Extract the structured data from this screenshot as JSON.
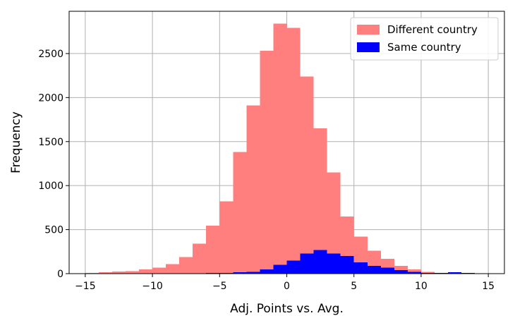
{
  "chart_data": {
    "type": "bar",
    "title": "",
    "xlabel": "Adj. Points vs. Avg.",
    "ylabel": "Frequency",
    "xlim": [
      -16.2,
      16.2
    ],
    "ylim": [
      0,
      2980
    ],
    "xticks": [
      -15,
      -10,
      -5,
      0,
      5,
      10,
      15
    ],
    "yticks": [
      0,
      500,
      1000,
      1500,
      2000,
      2500
    ],
    "grid": true,
    "legend_position": "top-right",
    "bin_width": 1,
    "series": [
      {
        "name": "Different country",
        "color": "#ff7f7f",
        "bins": [
          {
            "x0": -15,
            "value": 10
          },
          {
            "x0": -14,
            "value": 15
          },
          {
            "x0": -13,
            "value": 25
          },
          {
            "x0": -12,
            "value": 30
          },
          {
            "x0": -11,
            "value": 50
          },
          {
            "x0": -10,
            "value": 70
          },
          {
            "x0": -9,
            "value": 110
          },
          {
            "x0": -8,
            "value": 190
          },
          {
            "x0": -7,
            "value": 340
          },
          {
            "x0": -6,
            "value": 545
          },
          {
            "x0": -5,
            "value": 820
          },
          {
            "x0": -4,
            "value": 1380
          },
          {
            "x0": -3,
            "value": 1910
          },
          {
            "x0": -2,
            "value": 2530
          },
          {
            "x0": -1,
            "value": 2840
          },
          {
            "x0": 0,
            "value": 2790
          },
          {
            "x0": 1,
            "value": 2240
          },
          {
            "x0": 2,
            "value": 1650
          },
          {
            "x0": 3,
            "value": 1150
          },
          {
            "x0": 4,
            "value": 650
          },
          {
            "x0": 5,
            "value": 420
          },
          {
            "x0": 6,
            "value": 260
          },
          {
            "x0": 7,
            "value": 170
          },
          {
            "x0": 8,
            "value": 90
          },
          {
            "x0": 9,
            "value": 50
          },
          {
            "x0": 10,
            "value": 20
          },
          {
            "x0": 11,
            "value": 10
          },
          {
            "x0": 12,
            "value": 5
          },
          {
            "x0": 13,
            "value": 3
          }
        ]
      },
      {
        "name": "Same country",
        "color": "#0000ff",
        "bins": [
          {
            "x0": -7,
            "value": 5
          },
          {
            "x0": -6,
            "value": 8
          },
          {
            "x0": -5,
            "value": 10
          },
          {
            "x0": -4,
            "value": 15
          },
          {
            "x0": -3,
            "value": 20
          },
          {
            "x0": -2,
            "value": 50
          },
          {
            "x0": -1,
            "value": 100
          },
          {
            "x0": 0,
            "value": 150
          },
          {
            "x0": 1,
            "value": 230
          },
          {
            "x0": 2,
            "value": 270
          },
          {
            "x0": 3,
            "value": 230
          },
          {
            "x0": 4,
            "value": 200
          },
          {
            "x0": 5,
            "value": 130
          },
          {
            "x0": 6,
            "value": 90
          },
          {
            "x0": 7,
            "value": 70
          },
          {
            "x0": 8,
            "value": 40
          },
          {
            "x0": 9,
            "value": 20
          },
          {
            "x0": 10,
            "value": 10
          },
          {
            "x0": 11,
            "value": 10
          },
          {
            "x0": 12,
            "value": 15
          },
          {
            "x0": 13,
            "value": 10
          }
        ]
      }
    ]
  }
}
